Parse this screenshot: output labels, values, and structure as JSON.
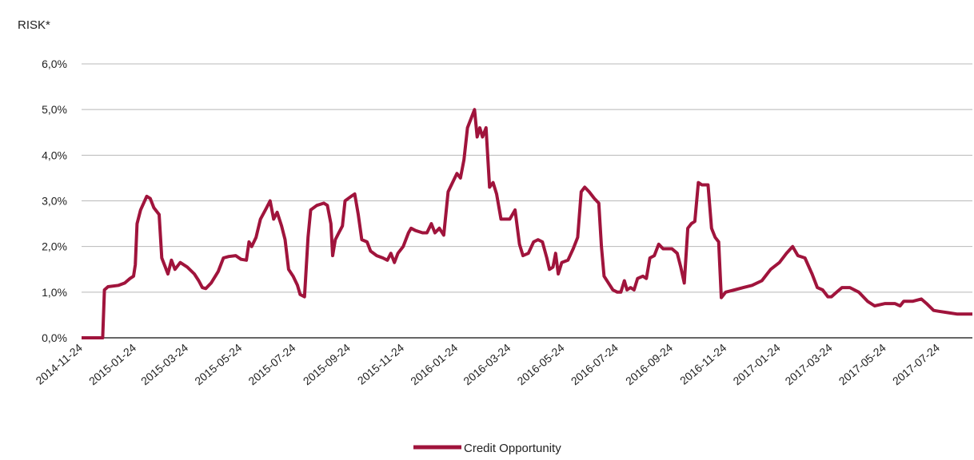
{
  "chart_data": {
    "type": "line",
    "ylabel": "RISK*",
    "xlabel": "",
    "title": "",
    "ylim": [
      0,
      6
    ],
    "y_ticks": [
      "0,0%",
      "1,0%",
      "2,0%",
      "3,0%",
      "4,0%",
      "5,0%",
      "6,0%"
    ],
    "x_tick_labels": [
      "2014-11-24",
      "2015-01-24",
      "2015-03-24",
      "2015-05-24",
      "2015-07-24",
      "2015-09-24",
      "2015-11-24",
      "2016-01-24",
      "2016-03-24",
      "2016-05-24",
      "2016-07-24",
      "2016-09-24",
      "2016-11-24",
      "2017-01-24",
      "2017-03-24",
      "2017-05-24",
      "2017-07-24"
    ],
    "x_range": [
      "2014-11-24",
      "2017-08-31"
    ],
    "grid": "horizontal",
    "legend_position": "bottom-center",
    "colors": {
      "series": "#a0143c",
      "grid": "#b8b8b8",
      "axis": "#333333",
      "text": "#222222"
    },
    "series": [
      {
        "name": "Credit Opportunity",
        "color": "#a0143c",
        "points": [
          [
            "2014-11-24",
            0.0
          ],
          [
            "2014-12-18",
            0.0
          ],
          [
            "2014-12-20",
            1.05
          ],
          [
            "2014-12-24",
            1.12
          ],
          [
            "2015-01-05",
            1.15
          ],
          [
            "2015-01-12",
            1.2
          ],
          [
            "2015-01-18",
            1.3
          ],
          [
            "2015-01-22",
            1.35
          ],
          [
            "2015-01-24",
            1.6
          ],
          [
            "2015-01-26",
            2.5
          ],
          [
            "2015-01-30",
            2.8
          ],
          [
            "2015-02-06",
            3.1
          ],
          [
            "2015-02-10",
            3.05
          ],
          [
            "2015-02-14",
            2.85
          ],
          [
            "2015-02-20",
            2.7
          ],
          [
            "2015-02-23",
            1.75
          ],
          [
            "2015-02-27",
            1.55
          ],
          [
            "2015-03-02",
            1.4
          ],
          [
            "2015-03-06",
            1.7
          ],
          [
            "2015-03-10",
            1.5
          ],
          [
            "2015-03-16",
            1.65
          ],
          [
            "2015-03-24",
            1.55
          ],
          [
            "2015-04-01",
            1.4
          ],
          [
            "2015-04-06",
            1.25
          ],
          [
            "2015-04-10",
            1.1
          ],
          [
            "2015-04-14",
            1.08
          ],
          [
            "2015-04-20",
            1.2
          ],
          [
            "2015-04-28",
            1.45
          ],
          [
            "2015-05-04",
            1.75
          ],
          [
            "2015-05-10",
            1.78
          ],
          [
            "2015-05-18",
            1.8
          ],
          [
            "2015-05-24",
            1.72
          ],
          [
            "2015-05-30",
            1.7
          ],
          [
            "2015-06-02",
            2.1
          ],
          [
            "2015-06-05",
            2.0
          ],
          [
            "2015-06-10",
            2.2
          ],
          [
            "2015-06-15",
            2.6
          ],
          [
            "2015-06-22",
            2.85
          ],
          [
            "2015-06-26",
            3.0
          ],
          [
            "2015-06-30",
            2.6
          ],
          [
            "2015-07-04",
            2.75
          ],
          [
            "2015-07-09",
            2.45
          ],
          [
            "2015-07-13",
            2.15
          ],
          [
            "2015-07-17",
            1.5
          ],
          [
            "2015-07-22",
            1.35
          ],
          [
            "2015-07-27",
            1.15
          ],
          [
            "2015-07-30",
            0.95
          ],
          [
            "2015-08-04",
            0.9
          ],
          [
            "2015-08-08",
            2.2
          ],
          [
            "2015-08-11",
            2.8
          ],
          [
            "2015-08-18",
            2.9
          ],
          [
            "2015-08-26",
            2.95
          ],
          [
            "2015-08-30",
            2.9
          ],
          [
            "2015-09-03",
            2.5
          ],
          [
            "2015-09-05",
            1.8
          ],
          [
            "2015-09-08",
            2.15
          ],
          [
            "2015-09-12",
            2.3
          ],
          [
            "2015-09-16",
            2.45
          ],
          [
            "2015-09-19",
            3.0
          ],
          [
            "2015-09-26",
            3.1
          ],
          [
            "2015-09-30",
            3.15
          ],
          [
            "2015-10-04",
            2.7
          ],
          [
            "2015-10-08",
            2.15
          ],
          [
            "2015-10-14",
            2.1
          ],
          [
            "2015-10-18",
            1.9
          ],
          [
            "2015-10-25",
            1.8
          ],
          [
            "2015-11-01",
            1.75
          ],
          [
            "2015-11-06",
            1.7
          ],
          [
            "2015-11-10",
            1.85
          ],
          [
            "2015-11-14",
            1.65
          ],
          [
            "2015-11-18",
            1.85
          ],
          [
            "2015-11-24",
            2.0
          ],
          [
            "2015-11-30",
            2.3
          ],
          [
            "2015-12-03",
            2.4
          ],
          [
            "2015-12-08",
            2.35
          ],
          [
            "2015-12-16",
            2.3
          ],
          [
            "2015-12-21",
            2.3
          ],
          [
            "2015-12-26",
            2.5
          ],
          [
            "2015-12-30",
            2.3
          ],
          [
            "2016-01-04",
            2.4
          ],
          [
            "2016-01-09",
            2.25
          ],
          [
            "2016-01-14",
            3.2
          ],
          [
            "2016-01-19",
            3.4
          ],
          [
            "2016-01-24",
            3.6
          ],
          [
            "2016-01-28",
            3.5
          ],
          [
            "2016-02-01",
            3.9
          ],
          [
            "2016-02-05",
            4.6
          ],
          [
            "2016-02-09",
            4.8
          ],
          [
            "2016-02-13",
            5.0
          ],
          [
            "2016-02-16",
            4.4
          ],
          [
            "2016-02-19",
            4.6
          ],
          [
            "2016-02-22",
            4.4
          ],
          [
            "2016-02-26",
            4.6
          ],
          [
            "2016-03-01",
            3.3
          ],
          [
            "2016-03-05",
            3.4
          ],
          [
            "2016-03-09",
            3.15
          ],
          [
            "2016-03-14",
            2.6
          ],
          [
            "2016-03-24",
            2.6
          ],
          [
            "2016-03-30",
            2.8
          ],
          [
            "2016-04-04",
            2.05
          ],
          [
            "2016-04-08",
            1.8
          ],
          [
            "2016-04-14",
            1.85
          ],
          [
            "2016-04-20",
            2.1
          ],
          [
            "2016-04-25",
            2.15
          ],
          [
            "2016-04-30",
            2.1
          ],
          [
            "2016-05-05",
            1.75
          ],
          [
            "2016-05-08",
            1.5
          ],
          [
            "2016-05-12",
            1.55
          ],
          [
            "2016-05-15",
            1.85
          ],
          [
            "2016-05-18",
            1.4
          ],
          [
            "2016-05-22",
            1.65
          ],
          [
            "2016-05-29",
            1.7
          ],
          [
            "2016-06-04",
            1.95
          ],
          [
            "2016-06-09",
            2.2
          ],
          [
            "2016-06-13",
            3.2
          ],
          [
            "2016-06-17",
            3.3
          ],
          [
            "2016-06-22",
            3.2
          ],
          [
            "2016-06-28",
            3.05
          ],
          [
            "2016-07-03",
            2.95
          ],
          [
            "2016-07-06",
            2.0
          ],
          [
            "2016-07-09",
            1.35
          ],
          [
            "2016-07-14",
            1.2
          ],
          [
            "2016-07-19",
            1.05
          ],
          [
            "2016-07-24",
            1.0
          ],
          [
            "2016-07-28",
            1.0
          ],
          [
            "2016-08-01",
            1.25
          ],
          [
            "2016-08-04",
            1.05
          ],
          [
            "2016-08-08",
            1.1
          ],
          [
            "2016-08-12",
            1.05
          ],
          [
            "2016-08-16",
            1.3
          ],
          [
            "2016-08-22",
            1.35
          ],
          [
            "2016-08-26",
            1.3
          ],
          [
            "2016-08-30",
            1.75
          ],
          [
            "2016-09-04",
            1.8
          ],
          [
            "2016-09-09",
            2.05
          ],
          [
            "2016-09-14",
            1.95
          ],
          [
            "2016-09-24",
            1.95
          ],
          [
            "2016-09-30",
            1.85
          ],
          [
            "2016-10-04",
            1.55
          ],
          [
            "2016-10-08",
            1.2
          ],
          [
            "2016-10-12",
            2.4
          ],
          [
            "2016-10-16",
            2.5
          ],
          [
            "2016-10-20",
            2.55
          ],
          [
            "2016-10-24",
            3.4
          ],
          [
            "2016-10-28",
            3.35
          ],
          [
            "2016-11-04",
            3.35
          ],
          [
            "2016-11-08",
            2.4
          ],
          [
            "2016-11-12",
            2.2
          ],
          [
            "2016-11-16",
            2.1
          ],
          [
            "2016-11-19",
            0.88
          ],
          [
            "2016-11-24",
            1.0
          ],
          [
            "2016-12-04",
            1.05
          ],
          [
            "2016-12-14",
            1.1
          ],
          [
            "2016-12-24",
            1.15
          ],
          [
            "2017-01-04",
            1.25
          ],
          [
            "2017-01-14",
            1.5
          ],
          [
            "2017-01-24",
            1.65
          ],
          [
            "2017-02-01",
            1.85
          ],
          [
            "2017-02-08",
            2.0
          ],
          [
            "2017-02-14",
            1.8
          ],
          [
            "2017-02-22",
            1.75
          ],
          [
            "2017-03-02",
            1.4
          ],
          [
            "2017-03-08",
            1.1
          ],
          [
            "2017-03-14",
            1.05
          ],
          [
            "2017-03-20",
            0.9
          ],
          [
            "2017-03-24",
            0.9
          ],
          [
            "2017-03-30",
            1.0
          ],
          [
            "2017-04-05",
            1.1
          ],
          [
            "2017-04-14",
            1.1
          ],
          [
            "2017-04-24",
            1.0
          ],
          [
            "2017-05-04",
            0.8
          ],
          [
            "2017-05-12",
            0.7
          ],
          [
            "2017-05-24",
            0.75
          ],
          [
            "2017-06-04",
            0.75
          ],
          [
            "2017-06-10",
            0.7
          ],
          [
            "2017-06-14",
            0.8
          ],
          [
            "2017-06-24",
            0.8
          ],
          [
            "2017-07-04",
            0.85
          ],
          [
            "2017-07-10",
            0.75
          ],
          [
            "2017-07-18",
            0.6
          ],
          [
            "2017-07-24",
            0.58
          ],
          [
            "2017-08-04",
            0.55
          ],
          [
            "2017-08-14",
            0.52
          ],
          [
            "2017-08-31",
            0.52
          ]
        ]
      }
    ]
  }
}
